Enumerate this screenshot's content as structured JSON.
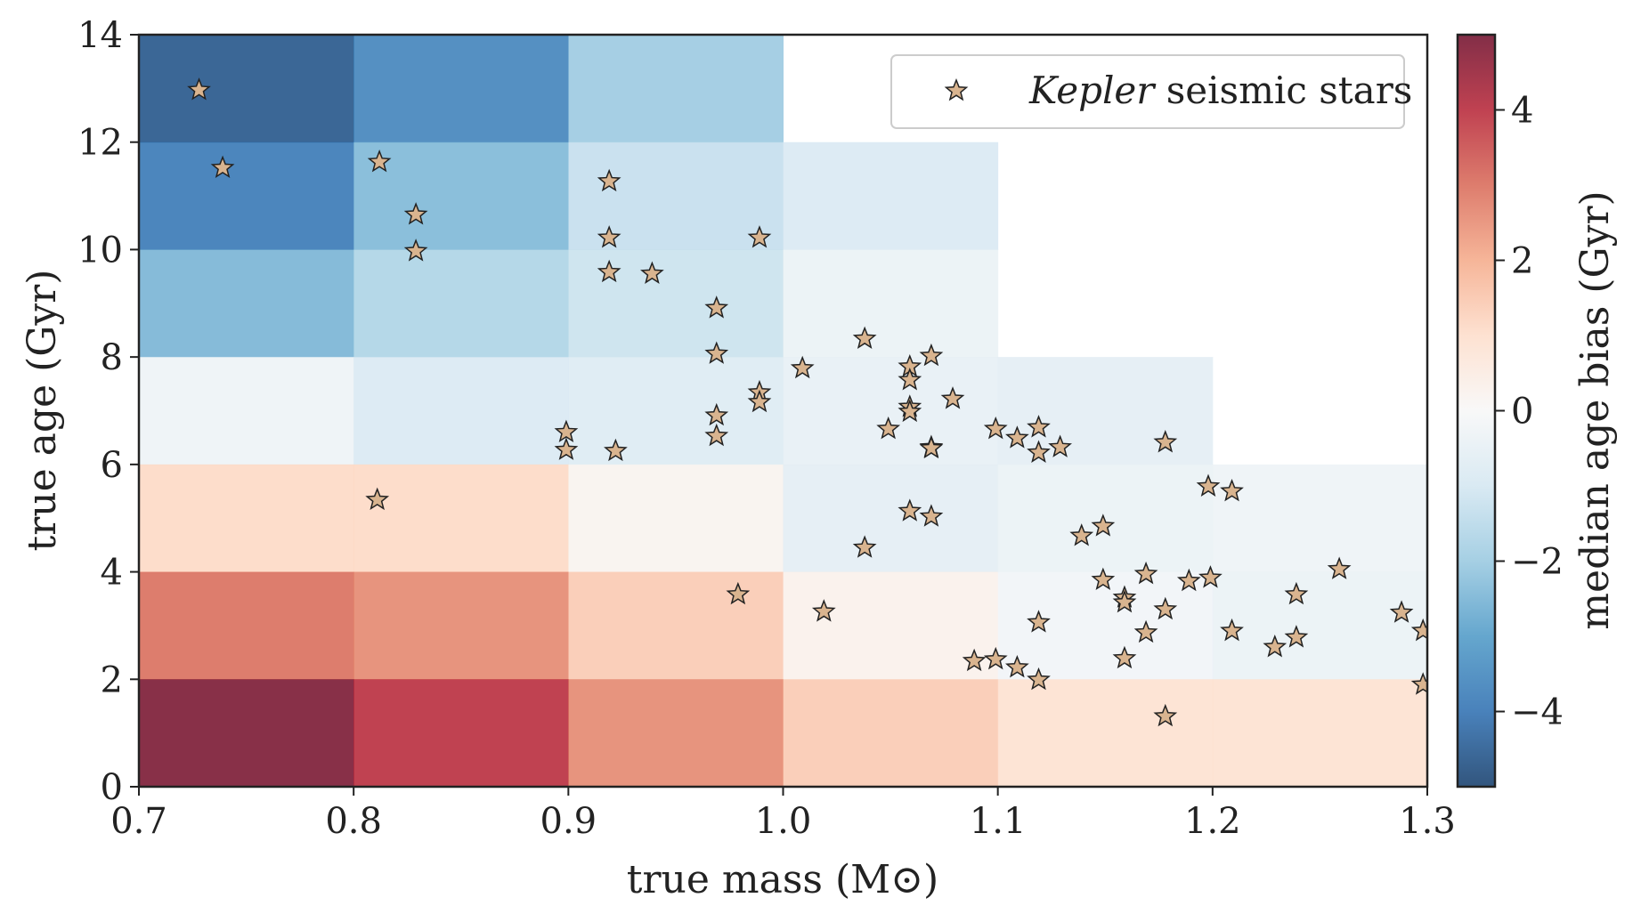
{
  "chart_data": {
    "type": "heatmap",
    "xlabel": "true mass (M⊙)",
    "ylabel": "true age (Gyr)",
    "xlim": [
      0.7,
      1.3
    ],
    "ylim": [
      0,
      14
    ],
    "xticks": [
      "0.7",
      "0.8",
      "0.9",
      "1.0",
      "1.1",
      "1.2",
      "1.3"
    ],
    "yticks": [
      "0",
      "2",
      "4",
      "6",
      "8",
      "10",
      "12",
      "14"
    ],
    "colorbar": {
      "label": "median age bias (Gyr)",
      "range": [
        -5,
        5
      ],
      "ticks": [
        "4",
        "2",
        "0",
        "−2",
        "−4"
      ],
      "tick_values": [
        4,
        2,
        0,
        -2,
        -4
      ],
      "colormap": "RdBu_r"
    },
    "cells": [
      {
        "m0": 0.7,
        "m1": 0.8,
        "a0": 12,
        "a1": 14,
        "bias": -4.6
      },
      {
        "m0": 0.8,
        "m1": 0.9,
        "a0": 12,
        "a1": 14,
        "bias": -3.6
      },
      {
        "m0": 0.9,
        "m1": 1.0,
        "a0": 12,
        "a1": 14,
        "bias": -2.0
      },
      {
        "m0": 0.7,
        "m1": 0.8,
        "a0": 10,
        "a1": 12,
        "bias": -3.9
      },
      {
        "m0": 0.8,
        "m1": 0.9,
        "a0": 10,
        "a1": 12,
        "bias": -2.4
      },
      {
        "m0": 0.9,
        "m1": 1.0,
        "a0": 10,
        "a1": 12,
        "bias": -1.3
      },
      {
        "m0": 1.0,
        "m1": 1.1,
        "a0": 10,
        "a1": 12,
        "bias": -0.9
      },
      {
        "m0": 0.7,
        "m1": 0.8,
        "a0": 8,
        "a1": 10,
        "bias": -2.5
      },
      {
        "m0": 0.8,
        "m1": 0.9,
        "a0": 8,
        "a1": 10,
        "bias": -1.7
      },
      {
        "m0": 0.9,
        "m1": 1.0,
        "a0": 8,
        "a1": 10,
        "bias": -1.2
      },
      {
        "m0": 1.0,
        "m1": 1.1,
        "a0": 8,
        "a1": 10,
        "bias": -0.4
      },
      {
        "m0": 0.7,
        "m1": 0.8,
        "a0": 6,
        "a1": 8,
        "bias": -0.3
      },
      {
        "m0": 0.8,
        "m1": 0.9,
        "a0": 6,
        "a1": 8,
        "bias": -0.9
      },
      {
        "m0": 0.9,
        "m1": 1.0,
        "a0": 6,
        "a1": 8,
        "bias": -0.8
      },
      {
        "m0": 1.0,
        "m1": 1.1,
        "a0": 6,
        "a1": 8,
        "bias": -0.5
      },
      {
        "m0": 1.1,
        "m1": 1.2,
        "a0": 6,
        "a1": 8,
        "bias": -0.6
      },
      {
        "m0": 0.7,
        "m1": 0.8,
        "a0": 4,
        "a1": 6,
        "bias": 1.1
      },
      {
        "m0": 0.8,
        "m1": 0.9,
        "a0": 4,
        "a1": 6,
        "bias": 1.1
      },
      {
        "m0": 0.9,
        "m1": 1.0,
        "a0": 4,
        "a1": 6,
        "bias": 0.2
      },
      {
        "m0": 1.0,
        "m1": 1.1,
        "a0": 4,
        "a1": 6,
        "bias": -0.6
      },
      {
        "m0": 1.1,
        "m1": 1.2,
        "a0": 4,
        "a1": 6,
        "bias": -0.4
      },
      {
        "m0": 1.2,
        "m1": 1.3,
        "a0": 4,
        "a1": 6,
        "bias": -0.3
      },
      {
        "m0": 0.7,
        "m1": 0.8,
        "a0": 2,
        "a1": 4,
        "bias": 3.0
      },
      {
        "m0": 0.8,
        "m1": 0.9,
        "a0": 2,
        "a1": 4,
        "bias": 2.6
      },
      {
        "m0": 0.9,
        "m1": 1.0,
        "a0": 2,
        "a1": 4,
        "bias": 1.4
      },
      {
        "m0": 1.0,
        "m1": 1.1,
        "a0": 2,
        "a1": 4,
        "bias": 0.3
      },
      {
        "m0": 1.1,
        "m1": 1.2,
        "a0": 2,
        "a1": 4,
        "bias": -0.2
      },
      {
        "m0": 1.2,
        "m1": 1.3,
        "a0": 2,
        "a1": 4,
        "bias": -0.4
      },
      {
        "m0": 0.7,
        "m1": 0.8,
        "a0": 0,
        "a1": 2,
        "bias": 4.9
      },
      {
        "m0": 0.8,
        "m1": 0.9,
        "a0": 0,
        "a1": 2,
        "bias": 4.0
      },
      {
        "m0": 0.9,
        "m1": 1.0,
        "a0": 0,
        "a1": 2,
        "bias": 2.6
      },
      {
        "m0": 1.0,
        "m1": 1.1,
        "a0": 0,
        "a1": 2,
        "bias": 1.4
      },
      {
        "m0": 1.1,
        "m1": 1.2,
        "a0": 0,
        "a1": 2,
        "bias": 0.9
      },
      {
        "m0": 1.2,
        "m1": 1.3,
        "a0": 0,
        "a1": 2,
        "bias": 0.9
      }
    ],
    "series": [
      {
        "name": "Kepler seismic stars",
        "legend_italic_part": "Kepler",
        "legend_rest": " seismic stars",
        "marker": "star",
        "color": "#d9b48f",
        "edgecolor": "#222222",
        "points": [
          [
            0.728,
            12.97
          ],
          [
            0.739,
            11.52
          ],
          [
            0.812,
            11.63
          ],
          [
            0.829,
            10.65
          ],
          [
            0.829,
            9.97
          ],
          [
            0.811,
            5.34
          ],
          [
            0.919,
            11.27
          ],
          [
            0.919,
            10.22
          ],
          [
            0.919,
            9.58
          ],
          [
            0.939,
            9.55
          ],
          [
            0.989,
            10.22
          ],
          [
            0.969,
            8.91
          ],
          [
            0.969,
            8.06
          ],
          [
            0.989,
            7.34
          ],
          [
            0.989,
            7.16
          ],
          [
            0.969,
            6.91
          ],
          [
            0.969,
            6.53
          ],
          [
            0.899,
            6.6
          ],
          [
            0.899,
            6.27
          ],
          [
            0.922,
            6.25
          ],
          [
            0.979,
            3.58
          ],
          [
            1.009,
            7.79
          ],
          [
            1.038,
            8.34
          ],
          [
            1.059,
            7.82
          ],
          [
            1.059,
            7.57
          ],
          [
            1.069,
            8.02
          ],
          [
            1.059,
            7.07
          ],
          [
            1.059,
            6.98
          ],
          [
            1.049,
            6.66
          ],
          [
            1.079,
            7.22
          ],
          [
            1.069,
            6.32
          ],
          [
            1.069,
            6.3
          ],
          [
            1.059,
            5.13
          ],
          [
            1.069,
            5.03
          ],
          [
            1.038,
            4.45
          ],
          [
            1.019,
            3.26
          ],
          [
            1.099,
            6.66
          ],
          [
            1.109,
            6.49
          ],
          [
            1.119,
            6.69
          ],
          [
            1.119,
            6.22
          ],
          [
            1.129,
            6.32
          ],
          [
            1.178,
            6.41
          ],
          [
            1.139,
            4.67
          ],
          [
            1.149,
            4.85
          ],
          [
            1.149,
            3.85
          ],
          [
            1.159,
            3.52
          ],
          [
            1.159,
            3.43
          ],
          [
            1.169,
            3.96
          ],
          [
            1.189,
            3.83
          ],
          [
            1.199,
            3.89
          ],
          [
            1.198,
            5.59
          ],
          [
            1.209,
            5.5
          ],
          [
            1.178,
            3.3
          ],
          [
            1.169,
            2.87
          ],
          [
            1.119,
            3.06
          ],
          [
            1.159,
            2.39
          ],
          [
            1.089,
            2.34
          ],
          [
            1.099,
            2.37
          ],
          [
            1.109,
            2.22
          ],
          [
            1.119,
            1.99
          ],
          [
            1.178,
            1.31
          ],
          [
            1.209,
            2.9
          ],
          [
            1.229,
            2.6
          ],
          [
            1.239,
            2.78
          ],
          [
            1.239,
            3.58
          ],
          [
            1.259,
            4.05
          ],
          [
            1.288,
            3.24
          ],
          [
            1.298,
            2.9
          ],
          [
            1.298,
            1.9
          ]
        ]
      }
    ]
  }
}
